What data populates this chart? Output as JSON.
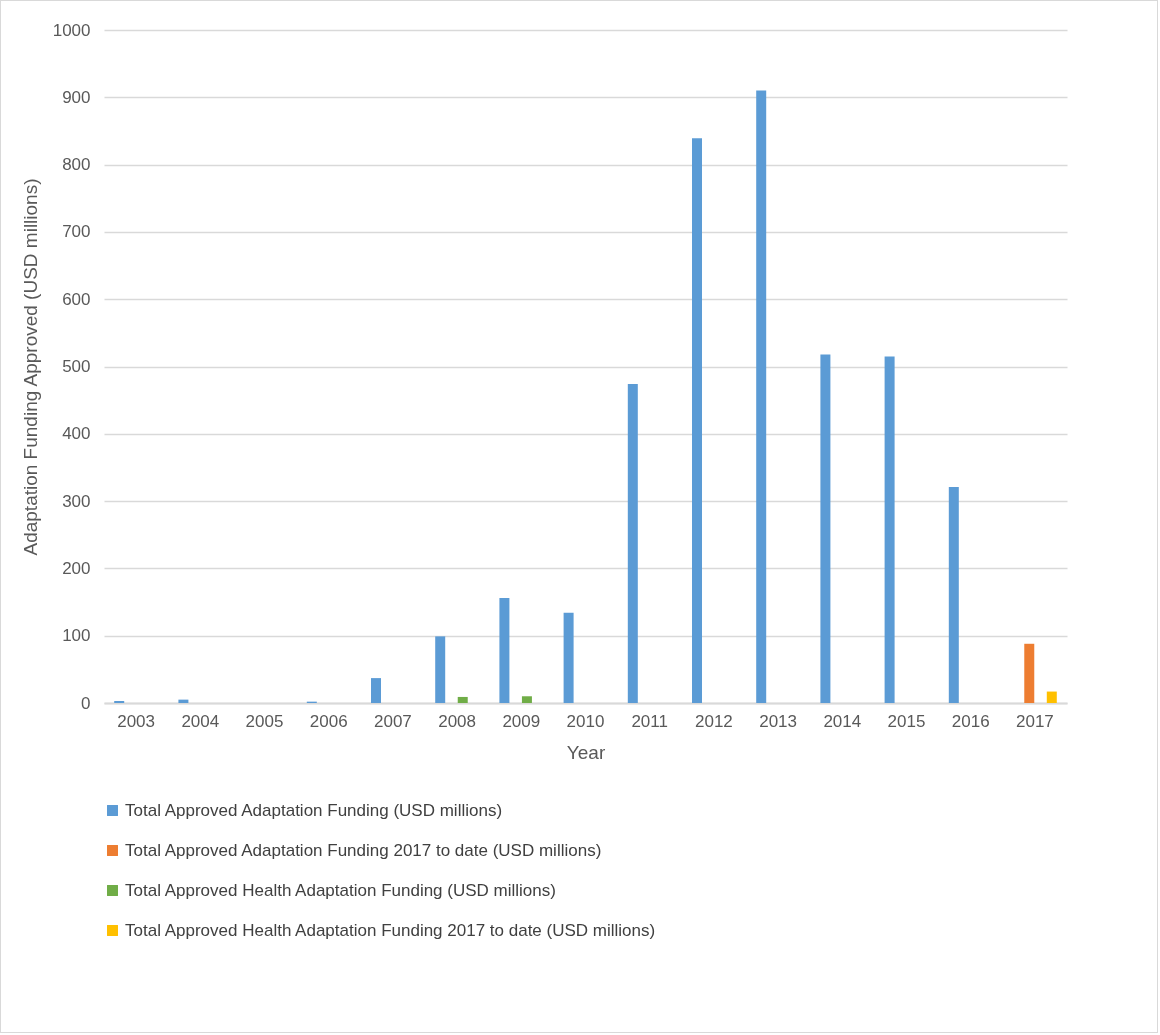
{
  "chart_data": {
    "type": "bar",
    "xlabel": "Year",
    "ylabel": "Adaptation Funding Approved (USD millions)",
    "categories": [
      "2003",
      "2004",
      "2005",
      "2006",
      "2007",
      "2008",
      "2009",
      "2010",
      "2011",
      "2012",
      "2013",
      "2014",
      "2015",
      "2016",
      "2017"
    ],
    "series": [
      {
        "name": "Total Approved Adaptation Funding (USD millions)",
        "color": "#5b9bd5",
        "values": [
          3,
          5,
          null,
          2,
          37,
          99,
          156,
          134,
          474,
          839,
          910,
          518,
          515,
          321,
          null
        ]
      },
      {
        "name": "Total Approved Adaptation Funding 2017 to date (USD millions)",
        "color": "#ed7d31",
        "values": [
          null,
          null,
          null,
          null,
          null,
          null,
          null,
          null,
          null,
          null,
          null,
          null,
          null,
          null,
          88
        ]
      },
      {
        "name": "Total Approved Health Adaptation Funding (USD millions)",
        "color": "#70ad47",
        "values": [
          null,
          null,
          null,
          null,
          null,
          9,
          10,
          null,
          null,
          null,
          null,
          null,
          null,
          null,
          null
        ]
      },
      {
        "name": "Total Approved Health Adaptation Funding 2017 to date (USD millions)",
        "color": "#ffc000",
        "values": [
          null,
          null,
          null,
          null,
          null,
          null,
          null,
          null,
          null,
          null,
          null,
          null,
          null,
          null,
          17
        ]
      }
    ],
    "ylim": [
      0,
      1000
    ],
    "yticks": [
      0,
      100,
      200,
      300,
      400,
      500,
      600,
      700,
      800,
      900,
      1000
    ],
    "grid": "y",
    "legend": "bottom"
  }
}
